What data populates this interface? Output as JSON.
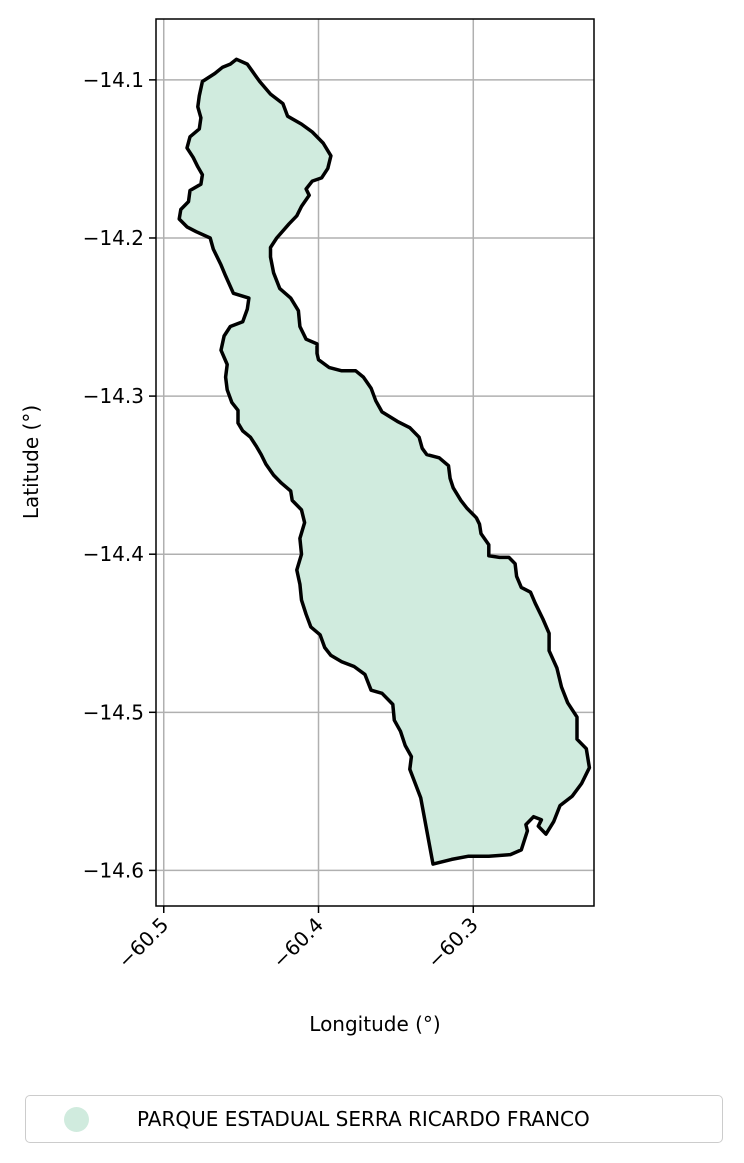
{
  "chart_data": {
    "type": "map",
    "xlabel": "Longitude (°)",
    "ylabel": "Latitude (°)",
    "xlim": [
      -60.505,
      -60.222
    ],
    "ylim": [
      -14.6225,
      -14.0615
    ],
    "x_ticks": [
      {
        "value": -60.5,
        "label": "−60.5"
      },
      {
        "value": -60.4,
        "label": "−60.4"
      },
      {
        "value": -60.3,
        "label": "−60.3"
      }
    ],
    "y_ticks": [
      {
        "value": -14.1,
        "label": "−14.1"
      },
      {
        "value": -14.2,
        "label": "−14.2"
      },
      {
        "value": -14.3,
        "label": "−14.3"
      },
      {
        "value": -14.4,
        "label": "−14.4"
      },
      {
        "value": -14.5,
        "label": "−14.5"
      },
      {
        "value": -14.6,
        "label": "−14.6"
      }
    ],
    "grid": true,
    "legend_position": "below",
    "fill_color": "#d0ebde",
    "edge_color": "#000000",
    "series": [
      {
        "name": "PARQUE ESTADUAL SERRA RICARDO FRANCO",
        "outline": [
          [
            -60.453,
            -14.087
          ],
          [
            -60.446,
            -14.09
          ],
          [
            -60.441,
            -14.097
          ],
          [
            -60.438,
            -14.101
          ],
          [
            -60.431,
            -14.109
          ],
          [
            -60.423,
            -14.115
          ],
          [
            -60.42,
            -14.123
          ],
          [
            -60.411,
            -14.128
          ],
          [
            -60.404,
            -14.133
          ],
          [
            -60.397,
            -14.14
          ],
          [
            -60.392,
            -14.148
          ],
          [
            -60.394,
            -14.156
          ],
          [
            -60.398,
            -14.162
          ],
          [
            -60.404,
            -14.164
          ],
          [
            -60.408,
            -14.169
          ],
          [
            -60.406,
            -14.173
          ],
          [
            -60.411,
            -14.18
          ],
          [
            -60.414,
            -14.186
          ],
          [
            -60.419,
            -14.191
          ],
          [
            -60.427,
            -14.2
          ],
          [
            -60.431,
            -14.206
          ],
          [
            -60.431,
            -14.212
          ],
          [
            -60.429,
            -14.222
          ],
          [
            -60.425,
            -14.232
          ],
          [
            -60.418,
            -14.238
          ],
          [
            -60.413,
            -14.246
          ],
          [
            -60.412,
            -14.256
          ],
          [
            -60.408,
            -14.264
          ],
          [
            -60.401,
            -14.267
          ],
          [
            -60.401,
            -14.273
          ],
          [
            -60.4,
            -14.277
          ],
          [
            -60.393,
            -14.282
          ],
          [
            -60.385,
            -14.284
          ],
          [
            -60.376,
            -14.284
          ],
          [
            -60.371,
            -14.288
          ],
          [
            -60.366,
            -14.295
          ],
          [
            -60.363,
            -14.303
          ],
          [
            -60.359,
            -14.31
          ],
          [
            -60.349,
            -14.316
          ],
          [
            -60.341,
            -14.32
          ],
          [
            -60.335,
            -14.326
          ],
          [
            -60.333,
            -14.333
          ],
          [
            -60.33,
            -14.337
          ],
          [
            -60.322,
            -14.339
          ],
          [
            -60.316,
            -14.344
          ],
          [
            -60.315,
            -14.352
          ],
          [
            -60.313,
            -14.358
          ],
          [
            -60.308,
            -14.366
          ],
          [
            -60.304,
            -14.371
          ],
          [
            -60.298,
            -14.377
          ],
          [
            -60.296,
            -14.381
          ],
          [
            -60.295,
            -14.387
          ],
          [
            -60.29,
            -14.394
          ],
          [
            -60.29,
            -14.401
          ],
          [
            -60.283,
            -14.402
          ],
          [
            -60.277,
            -14.402
          ],
          [
            -60.273,
            -14.406
          ],
          [
            -60.272,
            -14.414
          ],
          [
            -60.269,
            -14.421
          ],
          [
            -60.263,
            -14.424
          ],
          [
            -60.26,
            -14.431
          ],
          [
            -60.255,
            -14.441
          ],
          [
            -60.251,
            -14.45
          ],
          [
            -60.251,
            -14.461
          ],
          [
            -60.246,
            -14.472
          ],
          [
            -60.243,
            -14.484
          ],
          [
            -60.239,
            -14.494
          ],
          [
            -60.233,
            -14.503
          ],
          [
            -60.233,
            -14.517
          ],
          [
            -60.227,
            -14.523
          ],
          [
            -60.225,
            -14.535
          ],
          [
            -60.23,
            -14.545
          ],
          [
            -60.236,
            -14.553
          ],
          [
            -60.244,
            -14.559
          ],
          [
            -60.248,
            -14.569
          ],
          [
            -60.253,
            -14.577
          ],
          [
            -60.258,
            -14.572
          ],
          [
            -60.256,
            -14.568
          ],
          [
            -60.261,
            -14.566
          ],
          [
            -60.266,
            -14.571
          ],
          [
            -60.265,
            -14.575
          ],
          [
            -60.269,
            -14.587
          ],
          [
            -60.276,
            -14.59
          ],
          [
            -60.29,
            -14.591
          ],
          [
            -60.303,
            -14.591
          ],
          [
            -60.314,
            -14.593
          ],
          [
            -60.326,
            -14.596
          ],
          [
            -60.334,
            -14.554
          ],
          [
            -60.341,
            -14.536
          ],
          [
            -60.34,
            -14.528
          ],
          [
            -60.344,
            -14.521
          ],
          [
            -60.347,
            -14.512
          ],
          [
            -60.351,
            -14.505
          ],
          [
            -60.352,
            -14.495
          ],
          [
            -60.359,
            -14.488
          ],
          [
            -60.366,
            -14.486
          ],
          [
            -60.37,
            -14.476
          ],
          [
            -60.377,
            -14.471
          ],
          [
            -60.385,
            -14.468
          ],
          [
            -60.392,
            -14.464
          ],
          [
            -60.396,
            -14.459
          ],
          [
            -60.399,
            -14.451
          ],
          [
            -60.405,
            -14.446
          ],
          [
            -60.408,
            -14.438
          ],
          [
            -60.411,
            -14.429
          ],
          [
            -60.412,
            -14.419
          ],
          [
            -60.414,
            -14.41
          ],
          [
            -60.411,
            -14.4
          ],
          [
            -60.412,
            -14.39
          ],
          [
            -60.409,
            -14.38
          ],
          [
            -60.411,
            -14.372
          ],
          [
            -60.417,
            -14.366
          ],
          [
            -60.418,
            -14.36
          ],
          [
            -60.424,
            -14.355
          ],
          [
            -60.429,
            -14.35
          ],
          [
            -60.434,
            -14.343
          ],
          [
            -60.437,
            -14.337
          ],
          [
            -60.44,
            -14.332
          ],
          [
            -60.444,
            -14.326
          ],
          [
            -60.449,
            -14.322
          ],
          [
            -60.452,
            -14.317
          ],
          [
            -60.452,
            -14.309
          ],
          [
            -60.456,
            -14.304
          ],
          [
            -60.459,
            -14.296
          ],
          [
            -60.46,
            -14.288
          ],
          [
            -60.459,
            -14.28
          ],
          [
            -60.463,
            -14.271
          ],
          [
            -60.461,
            -14.262
          ],
          [
            -60.457,
            -14.256
          ],
          [
            -60.449,
            -14.253
          ],
          [
            -60.446,
            -14.245
          ],
          [
            -60.445,
            -14.238
          ],
          [
            -60.455,
            -14.235
          ],
          [
            -60.46,
            -14.224
          ],
          [
            -60.463,
            -14.217
          ],
          [
            -60.468,
            -14.207
          ],
          [
            -60.47,
            -14.2
          ],
          [
            -60.479,
            -14.196
          ],
          [
            -60.485,
            -14.193
          ],
          [
            -60.49,
            -14.188
          ],
          [
            -60.489,
            -14.182
          ],
          [
            -60.484,
            -14.177
          ],
          [
            -60.483,
            -14.17
          ],
          [
            -60.476,
            -14.166
          ],
          [
            -60.475,
            -14.16
          ],
          [
            -60.478,
            -14.155
          ],
          [
            -60.481,
            -14.149
          ],
          [
            -60.485,
            -14.143
          ],
          [
            -60.483,
            -14.136
          ],
          [
            -60.477,
            -14.131
          ],
          [
            -60.476,
            -14.124
          ],
          [
            -60.478,
            -14.117
          ],
          [
            -60.477,
            -14.11
          ],
          [
            -60.475,
            -14.101
          ],
          [
            -60.467,
            -14.096
          ],
          [
            -60.462,
            -14.092
          ],
          [
            -60.457,
            -14.09
          ],
          [
            -60.453,
            -14.087
          ]
        ]
      }
    ]
  }
}
